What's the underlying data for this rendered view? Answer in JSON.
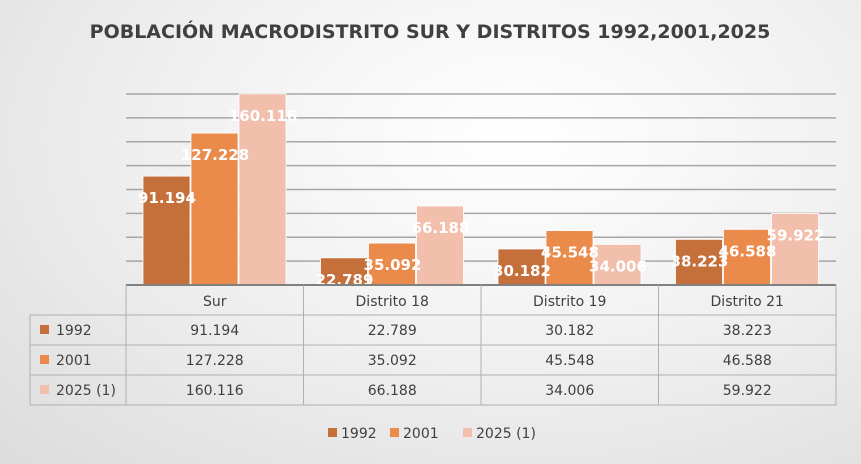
{
  "chart_data": {
    "type": "bar",
    "title": "POBLACIÓN MACRODISTRITO SUR Y DISTRITOS 1992,2001,2025",
    "categories": [
      "Sur",
      "Distrito 18",
      "Distrito 19",
      "Distrito 21"
    ],
    "series": [
      {
        "name": "1992",
        "color": "#c5703a",
        "values": [
          91194,
          22789,
          30182,
          38223
        ],
        "labels": [
          "91.194",
          "22.789",
          "30.182",
          "38.223"
        ]
      },
      {
        "name": "2001",
        "color": "#ea8a4b",
        "values": [
          127228,
          35092,
          45548,
          46588
        ],
        "labels": [
          "127.228",
          "35.092",
          "45.548",
          "46.588"
        ]
      },
      {
        "name": "2025 (1)",
        "color": "#f3bfad",
        "values": [
          160116,
          66188,
          34006,
          59922
        ],
        "labels": [
          "160.116",
          "66.188",
          "34.006",
          "59.922"
        ]
      }
    ],
    "xlabel": "",
    "ylabel": "",
    "ylim": [
      0,
      160000
    ],
    "ytick_step": 20000,
    "grid": true,
    "data_table": true,
    "legend": "bottom"
  }
}
